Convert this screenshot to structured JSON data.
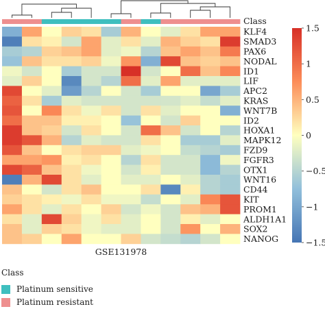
{
  "chart_data": {
    "type": "heatmap",
    "xlabel": "GSE131978",
    "annotation_label": "Class",
    "annotation_classes": [
      {
        "name": "Platinum sensitive",
        "color": "#3fbfbf"
      },
      {
        "name": "Platinum resistant",
        "color": "#ee8f8f"
      }
    ],
    "column_classes": [
      1,
      1,
      0,
      0,
      0,
      0,
      1,
      0,
      1,
      1,
      1,
      1
    ],
    "rows": [
      "KLF4",
      "SMAD3",
      "PAX6",
      "NODAL",
      "ID1",
      "LIF",
      "APC2",
      "KRAS",
      "WNT7B",
      "ID2",
      "HOXA1",
      "MAPK12",
      "FZD9",
      "FGFR3",
      "OTX1",
      "WNT16",
      "CD44",
      "KIT",
      "PROM1",
      "ALDH1A1",
      "SOX2",
      "NANOG"
    ],
    "values": [
      [
        -0.9,
        0.6,
        0.0,
        0.3,
        0.2,
        -0.6,
        0.5,
        0.0,
        -0.2,
        0.2,
        0.6,
        0.6
      ],
      [
        -1.4,
        0.2,
        0.1,
        -0.3,
        0.6,
        -0.2,
        0.2,
        -0.2,
        0.5,
        0.3,
        0.2,
        1.4
      ],
      [
        -0.6,
        -0.5,
        0.3,
        0.4,
        0.6,
        -0.2,
        -0.1,
        -0.5,
        0.4,
        0.6,
        0.4,
        0.9
      ],
      [
        -0.7,
        0.4,
        0.2,
        0.2,
        0.3,
        -0.1,
        0.7,
        -0.9,
        1.3,
        0.4,
        0.3,
        0.4
      ],
      [
        -0.1,
        -0.3,
        0.0,
        -0.6,
        -0.3,
        -0.3,
        1.5,
        -0.3,
        0.0,
        1.0,
        0.4,
        0.8
      ],
      [
        -0.2,
        0.3,
        0.0,
        -1.3,
        -0.3,
        -0.5,
        1.0,
        -0.2,
        0.6,
        -0.2,
        -0.2,
        -0.2
      ],
      [
        1.3,
        0.0,
        -0.2,
        -1.1,
        -0.5,
        0.0,
        -0.3,
        -0.6,
        0.0,
        0.0,
        -1.0,
        -0.6
      ],
      [
        1.1,
        0.2,
        -0.6,
        -0.2,
        -0.3,
        -0.3,
        -0.3,
        -0.3,
        -0.3,
        -0.2,
        -0.4,
        -0.2
      ],
      [
        1.2,
        0.0,
        0.8,
        0.2,
        -0.1,
        0.2,
        -0.3,
        0.2,
        -0.2,
        0.0,
        0.0,
        -0.9
      ],
      [
        1.0,
        0.4,
        0.4,
        0.1,
        0.1,
        0.0,
        -0.7,
        0.0,
        -0.3,
        0.3,
        0.0,
        0.0
      ],
      [
        1.4,
        0.4,
        0.3,
        -0.3,
        0.2,
        0.0,
        -0.3,
        1.0,
        0.4,
        -0.3,
        0.0,
        -0.5
      ],
      [
        1.4,
        1.2,
        0.5,
        -0.5,
        -0.2,
        -0.3,
        -0.3,
        0.2,
        0.0,
        -0.6,
        -0.6,
        -0.2
      ],
      [
        1.2,
        0.4,
        0.0,
        0.2,
        0.3,
        0.3,
        -0.2,
        -0.1,
        0.0,
        -0.4,
        -0.5,
        -0.6
      ],
      [
        0.6,
        0.6,
        0.7,
        0.1,
        0.2,
        0.0,
        -0.5,
        0.2,
        -0.3,
        -0.3,
        -0.8,
        -0.1
      ],
      [
        1.3,
        1.1,
        0.4,
        0.2,
        -0.1,
        0.0,
        -0.3,
        0.1,
        -0.3,
        -0.3,
        -0.8,
        -0.5
      ],
      [
        -1.4,
        0.5,
        1.3,
        0.2,
        -0.2,
        0.0,
        -0.2,
        -0.2,
        0.0,
        -0.2,
        -0.5,
        -0.6
      ],
      [
        0.4,
        0.0,
        -0.3,
        0.2,
        0.4,
        0.0,
        0.0,
        0.2,
        -1.3,
        0.1,
        -0.5,
        -0.6
      ],
      [
        0.3,
        0.2,
        0.1,
        -0.1,
        0.2,
        -0.1,
        -0.1,
        -0.4,
        0.0,
        -0.2,
        0.8,
        1.2
      ],
      [
        0.6,
        0.2,
        -0.2,
        0.2,
        0.0,
        0.3,
        -0.3,
        -0.1,
        -0.3,
        0.4,
        0.5,
        1.2
      ],
      [
        0.2,
        -0.2,
        1.3,
        0.3,
        -0.1,
        0.2,
        -0.2,
        0.0,
        -0.3,
        0.1,
        -0.2,
        0.0
      ],
      [
        0.4,
        -0.2,
        0.3,
        0.2,
        -0.1,
        -0.2,
        -0.2,
        0.0,
        -0.3,
        0.7,
        0.0,
        0.5
      ],
      [
        0.4,
        0.3,
        0.0,
        0.6,
        0.0,
        0.0,
        0.3,
        -0.3,
        -0.4,
        -0.5,
        -0.3,
        0.0
      ]
    ],
    "color_scale": {
      "min": -1.5,
      "max": 1.5,
      "stops": [
        {
          "value": -1.5,
          "color": "#4575b4"
        },
        {
          "value": -0.75,
          "color": "#91bfdb"
        },
        {
          "value": 0,
          "color": "#ffffbf"
        },
        {
          "value": 0.75,
          "color": "#fc8d59"
        },
        {
          "value": 1.5,
          "color": "#d73027"
        }
      ],
      "ticks": [
        1.5,
        1,
        0.5,
        0,
        -0.5,
        -1,
        -1.5
      ],
      "tick_labels": [
        "1.5",
        "1",
        "0.5",
        "0",
        "−0.5",
        "−1",
        "−1.5"
      ]
    },
    "dendrogram": "top"
  }
}
